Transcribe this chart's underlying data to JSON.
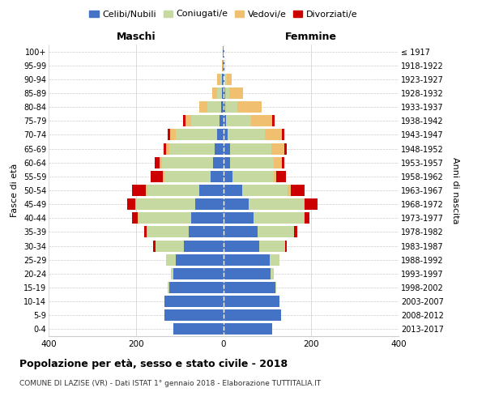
{
  "age_groups": [
    "0-4",
    "5-9",
    "10-14",
    "15-19",
    "20-24",
    "25-29",
    "30-34",
    "35-39",
    "40-44",
    "45-49",
    "50-54",
    "55-59",
    "60-64",
    "65-69",
    "70-74",
    "75-79",
    "80-84",
    "85-89",
    "90-94",
    "95-99",
    "100+"
  ],
  "birth_years": [
    "2013-2017",
    "2008-2012",
    "2003-2007",
    "1998-2002",
    "1993-1997",
    "1988-1992",
    "1983-1987",
    "1978-1982",
    "1973-1977",
    "1968-1972",
    "1963-1967",
    "1958-1962",
    "1953-1957",
    "1948-1952",
    "1943-1947",
    "1938-1942",
    "1933-1937",
    "1928-1932",
    "1923-1927",
    "1918-1922",
    "≤ 1917"
  ],
  "colors": {
    "celibi": "#4472C4",
    "coniugati": "#C5D9A0",
    "vedovi": "#F0C070",
    "divorziati": "#CC0000"
  },
  "maschi": {
    "celibi": [
      115,
      135,
      135,
      125,
      115,
      110,
      90,
      80,
      75,
      65,
      55,
      30,
      25,
      20,
      15,
      10,
      5,
      4,
      3,
      1,
      1
    ],
    "coniugati": [
      0,
      0,
      0,
      3,
      6,
      22,
      65,
      95,
      120,
      135,
      120,
      105,
      115,
      105,
      95,
      65,
      32,
      10,
      5,
      1,
      0
    ],
    "vedovi": [
      0,
      0,
      0,
      0,
      0,
      0,
      1,
      1,
      2,
      2,
      3,
      3,
      6,
      6,
      12,
      12,
      18,
      12,
      6,
      1,
      0
    ],
    "divorziati": [
      0,
      0,
      0,
      0,
      0,
      0,
      6,
      6,
      12,
      18,
      32,
      28,
      12,
      6,
      6,
      6,
      0,
      0,
      0,
      0,
      0
    ]
  },
  "femmine": {
    "celibi": [
      112,
      132,
      128,
      118,
      108,
      105,
      82,
      78,
      68,
      58,
      42,
      20,
      15,
      15,
      10,
      5,
      4,
      3,
      2,
      1,
      1
    ],
    "coniugati": [
      0,
      0,
      0,
      2,
      6,
      22,
      58,
      83,
      115,
      125,
      105,
      95,
      100,
      95,
      85,
      58,
      28,
      10,
      5,
      1,
      0
    ],
    "vedovi": [
      0,
      0,
      0,
      0,
      0,
      0,
      1,
      1,
      2,
      3,
      6,
      6,
      18,
      28,
      38,
      48,
      55,
      32,
      12,
      2,
      1
    ],
    "divorziati": [
      0,
      0,
      0,
      0,
      0,
      0,
      3,
      6,
      12,
      28,
      32,
      22,
      6,
      6,
      6,
      6,
      0,
      0,
      0,
      0,
      0
    ]
  },
  "title": "Popolazione per età, sesso e stato civile - 2018",
  "subtitle": "COMUNE DI LAZISE (VR) - Dati ISTAT 1° gennaio 2018 - Elaborazione TUTTITALIA.IT",
  "xlabel_left": "Maschi",
  "xlabel_right": "Femmine",
  "ylabel_left": "Fasce di età",
  "ylabel_right": "Anni di nascita",
  "xlim": 400,
  "legend_labels": [
    "Celibi/Nubili",
    "Coniugati/e",
    "Vedovi/e",
    "Divorziati/e"
  ]
}
